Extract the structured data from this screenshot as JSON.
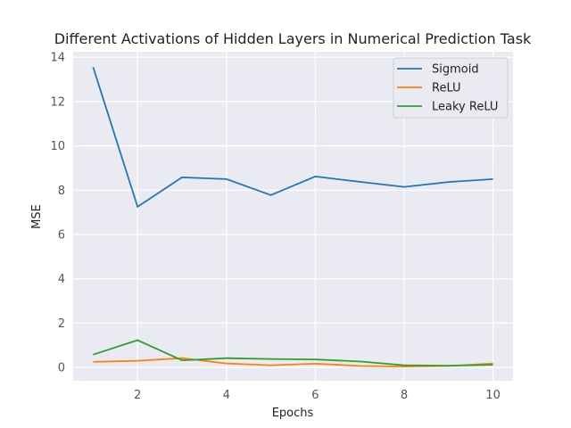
{
  "chart_data": {
    "type": "line",
    "title": "Different Activations of Hidden Layers in Numerical Prediction Task",
    "xlabel": "Epochs",
    "ylabel": "MSE",
    "x": [
      1,
      2,
      3,
      4,
      5,
      6,
      7,
      8,
      9,
      10
    ],
    "xlim": [
      0.55,
      10.45
    ],
    "ylim": [
      -0.6,
      14.25
    ],
    "xticks": [
      2,
      4,
      6,
      8,
      10
    ],
    "yticks": [
      0,
      2,
      4,
      6,
      8,
      10,
      12,
      14
    ],
    "grid": true,
    "legend_position": "top-right",
    "series": [
      {
        "name": "Sigmoid",
        "color": "#1f77b4",
        "values": [
          13.55,
          7.25,
          8.58,
          8.5,
          7.78,
          8.62,
          8.38,
          8.15,
          8.37,
          8.5
        ]
      },
      {
        "name": "ReLU",
        "color": "#ff7f0e",
        "values": [
          0.25,
          0.3,
          0.42,
          0.18,
          0.1,
          0.17,
          0.07,
          0.04,
          0.07,
          0.18
        ]
      },
      {
        "name": "Leaky ReLU",
        "color": "#2ca02c",
        "values": [
          0.58,
          1.23,
          0.32,
          0.42,
          0.38,
          0.36,
          0.27,
          0.1,
          0.08,
          0.12
        ]
      }
    ]
  }
}
